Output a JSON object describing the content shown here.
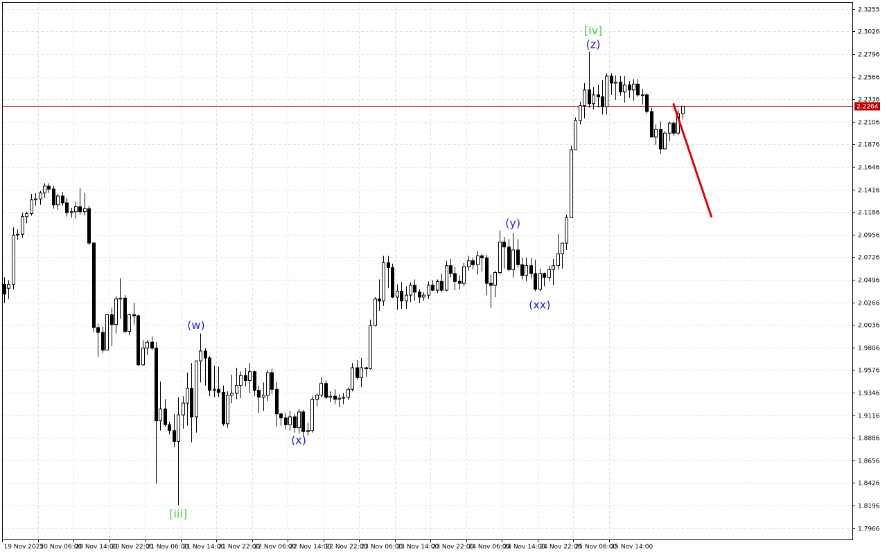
{
  "chart_data": {
    "type": "candlestick",
    "title": "",
    "xlabel": "",
    "ylabel": "",
    "ylim": [
      1.7851,
      2.3325
    ],
    "grid": true,
    "y_ticks": [
      "2.3255",
      "2.3026",
      "2.2796",
      "2.2566",
      "2.2336",
      "2.2106",
      "2.1876",
      "2.1646",
      "2.1416",
      "2.1186",
      "2.0956",
      "2.0726",
      "2.0496",
      "2.0266",
      "2.0036",
      "1.9806",
      "1.9576",
      "1.9346",
      "1.9116",
      "1.8886",
      "1.8656",
      "1.8426",
      "1.8196",
      "1.7966"
    ],
    "x_ticks": [
      "19 Nov 2025",
      "20 Nov 06:00",
      "20 Nov 14:00",
      "20 Nov 22:00",
      "21 Nov 06:00",
      "21 Nov 14:00",
      "21 Nov 22:00",
      "22 Nov 06:00",
      "22 Nov 14:00",
      "22 Nov 22:00",
      "23 Nov 06:00",
      "23 Nov 14:00",
      "23 Nov 22:00",
      "24 Nov 06:00",
      "24 Nov 14:00",
      "24 Nov 22:00",
      "25 Nov 06:00",
      "25 Nov 14:00"
    ],
    "current_price": {
      "label": "2.2264",
      "value": 2.2264,
      "color": "#c00000"
    },
    "candles": [
      [
        2.045,
        2.052,
        2.026,
        2.035
      ],
      [
        2.041,
        2.049,
        2.03,
        2.045
      ],
      [
        2.045,
        2.103,
        2.04,
        2.095
      ],
      [
        2.095,
        2.101,
        2.09,
        2.096
      ],
      [
        2.096,
        2.118,
        2.092,
        2.114
      ],
      [
        2.114,
        2.119,
        2.107,
        2.117
      ],
      [
        2.117,
        2.137,
        2.115,
        2.131
      ],
      [
        2.131,
        2.138,
        2.125,
        2.132
      ],
      [
        2.132,
        2.14,
        2.126,
        2.138
      ],
      [
        2.138,
        2.148,
        2.133,
        2.145
      ],
      [
        2.145,
        2.148,
        2.138,
        2.142
      ],
      [
        2.142,
        2.145,
        2.122,
        2.126
      ],
      [
        2.126,
        2.137,
        2.121,
        2.135
      ],
      [
        2.135,
        2.139,
        2.125,
        2.128
      ],
      [
        2.128,
        2.133,
        2.114,
        2.118
      ],
      [
        2.118,
        2.123,
        2.113,
        2.119
      ],
      [
        2.119,
        2.129,
        2.112,
        2.124
      ],
      [
        2.124,
        2.143,
        2.116,
        2.119
      ],
      [
        2.119,
        2.138,
        2.115,
        2.122
      ],
      [
        2.122,
        2.125,
        2.085,
        2.087
      ],
      [
        2.087,
        2.088,
        1.996,
        2.001
      ],
      [
        2.001,
        2.005,
        1.971,
        1.996
      ],
      [
        1.996,
        2.002,
        1.975,
        1.978
      ],
      [
        1.978,
        2.015,
        1.978,
        2.014
      ],
      [
        2.014,
        2.021,
        1.982,
        2.004
      ],
      [
        2.004,
        2.033,
        1.995,
        2.03
      ],
      [
        2.03,
        2.051,
        2.01,
        2.031
      ],
      [
        2.031,
        2.034,
        1.995,
        1.997
      ],
      [
        1.997,
        2.015,
        1.993,
        2.014
      ],
      [
        2.014,
        2.026,
        2.004,
        2.013
      ],
      [
        2.013,
        2.014,
        1.962,
        1.963
      ],
      [
        1.963,
        1.988,
        1.962,
        1.98
      ],
      [
        1.98,
        1.988,
        1.973,
        1.986
      ],
      [
        1.986,
        1.992,
        1.978,
        1.98
      ],
      [
        1.98,
        1.986,
        1.842,
        1.906
      ],
      [
        1.906,
        1.946,
        1.896,
        1.918
      ],
      [
        1.918,
        1.928,
        1.9,
        1.902
      ],
      [
        1.902,
        1.905,
        1.892,
        1.896
      ],
      [
        1.896,
        1.913,
        1.879,
        1.885
      ],
      [
        1.885,
        1.93,
        1.82,
        1.912
      ],
      [
        1.912,
        1.931,
        1.898,
        1.924
      ],
      [
        1.924,
        1.955,
        1.901,
        1.939
      ],
      [
        1.939,
        1.965,
        1.884,
        1.91
      ],
      [
        1.91,
        1.964,
        1.894,
        1.967
      ],
      [
        1.967,
        1.995,
        1.945,
        1.977
      ],
      [
        1.977,
        1.98,
        1.942,
        1.97
      ],
      [
        1.97,
        1.972,
        1.931,
        1.937
      ],
      [
        1.937,
        1.962,
        1.93,
        1.938
      ],
      [
        1.938,
        1.961,
        1.93,
        1.935
      ],
      [
        1.935,
        1.942,
        1.901,
        1.903
      ],
      [
        1.903,
        1.936,
        1.899,
        1.932
      ],
      [
        1.932,
        1.953,
        1.924,
        1.934
      ],
      [
        1.934,
        1.96,
        1.928,
        1.942
      ],
      [
        1.942,
        1.956,
        1.929,
        1.952
      ],
      [
        1.952,
        1.96,
        1.941,
        1.947
      ],
      [
        1.947,
        1.965,
        1.934,
        1.956
      ],
      [
        1.956,
        1.957,
        1.931,
        1.937
      ],
      [
        1.937,
        1.942,
        1.914,
        1.93
      ],
      [
        1.93,
        1.945,
        1.916,
        1.932
      ],
      [
        1.932,
        1.958,
        1.926,
        1.955
      ],
      [
        1.955,
        1.959,
        1.933,
        1.938
      ],
      [
        1.938,
        1.946,
        1.9,
        1.913
      ],
      [
        1.913,
        1.914,
        1.901,
        1.909
      ],
      [
        1.909,
        1.914,
        1.897,
        1.902
      ],
      [
        1.902,
        1.916,
        1.896,
        1.91
      ],
      [
        1.91,
        1.913,
        1.894,
        1.899
      ],
      [
        1.899,
        1.918,
        1.893,
        1.915
      ],
      [
        1.915,
        1.917,
        1.89,
        1.895
      ],
      [
        1.895,
        1.904,
        1.891,
        1.896
      ],
      [
        1.896,
        1.931,
        1.894,
        1.928
      ],
      [
        1.928,
        1.934,
        1.921,
        1.932
      ],
      [
        1.932,
        1.95,
        1.93,
        1.944
      ],
      [
        1.944,
        1.947,
        1.928,
        1.93
      ],
      [
        1.93,
        1.936,
        1.925,
        1.931
      ],
      [
        1.931,
        1.938,
        1.923,
        1.928
      ],
      [
        1.928,
        1.933,
        1.92,
        1.929
      ],
      [
        1.929,
        1.934,
        1.923,
        1.93
      ],
      [
        1.93,
        1.94,
        1.927,
        1.938
      ],
      [
        1.938,
        1.965,
        1.936,
        1.96
      ],
      [
        1.96,
        1.968,
        1.948,
        1.95
      ],
      [
        1.95,
        1.97,
        1.94,
        1.96
      ],
      [
        1.96,
        1.961,
        1.951,
        1.959
      ],
      [
        1.959,
        2.009,
        1.958,
        2.003
      ],
      [
        2.003,
        2.032,
        2.002,
        2.03
      ],
      [
        2.03,
        2.05,
        2.018,
        2.028
      ],
      [
        2.028,
        2.074,
        2.023,
        2.067
      ],
      [
        2.067,
        2.074,
        2.041,
        2.062
      ],
      [
        2.062,
        2.066,
        2.031,
        2.032
      ],
      [
        2.032,
        2.045,
        2.019,
        2.038
      ],
      [
        2.038,
        2.047,
        2.02,
        2.028
      ],
      [
        2.028,
        2.043,
        2.02,
        2.034
      ],
      [
        2.034,
        2.047,
        2.027,
        2.044
      ],
      [
        2.044,
        2.05,
        2.028,
        2.037
      ],
      [
        2.037,
        2.04,
        2.026,
        2.032
      ],
      [
        2.032,
        2.037,
        2.028,
        2.034
      ],
      [
        2.034,
        2.048,
        2.03,
        2.044
      ],
      [
        2.044,
        2.049,
        2.038,
        2.039
      ],
      [
        2.039,
        2.05,
        2.036,
        2.048
      ],
      [
        2.048,
        2.056,
        2.037,
        2.039
      ],
      [
        2.039,
        2.069,
        2.038,
        2.064
      ],
      [
        2.064,
        2.071,
        2.052,
        2.056
      ],
      [
        2.056,
        2.063,
        2.039,
        2.048
      ],
      [
        2.048,
        2.054,
        2.04,
        2.046
      ],
      [
        2.046,
        2.067,
        2.043,
        2.063
      ],
      [
        2.063,
        2.074,
        2.059,
        2.069
      ],
      [
        2.069,
        2.072,
        2.06,
        2.065
      ],
      [
        2.065,
        2.079,
        2.055,
        2.074
      ],
      [
        2.074,
        2.076,
        2.058,
        2.072
      ],
      [
        2.072,
        2.075,
        2.034,
        2.046
      ],
      [
        2.046,
        2.055,
        2.021,
        2.044
      ],
      [
        2.044,
        2.059,
        2.032,
        2.057
      ],
      [
        2.057,
        2.1,
        2.055,
        2.088
      ],
      [
        2.088,
        2.093,
        2.061,
        2.083
      ],
      [
        2.083,
        2.091,
        2.058,
        2.06
      ],
      [
        2.06,
        2.097,
        2.052,
        2.08
      ],
      [
        2.08,
        2.091,
        2.062,
        2.065
      ],
      [
        2.065,
        2.072,
        2.05,
        2.054
      ],
      [
        2.054,
        2.072,
        2.048,
        2.064
      ],
      [
        2.064,
        2.072,
        2.051,
        2.056
      ],
      [
        2.056,
        2.07,
        2.038,
        2.04
      ],
      [
        2.04,
        2.061,
        2.038,
        2.056
      ],
      [
        2.056,
        2.057,
        2.043,
        2.052
      ],
      [
        2.052,
        2.064,
        2.048,
        2.06
      ],
      [
        2.06,
        2.071,
        2.044,
        2.064
      ],
      [
        2.064,
        2.096,
        2.06,
        2.076
      ],
      [
        2.076,
        2.087,
        2.061,
        2.087
      ],
      [
        2.087,
        2.116,
        2.08,
        2.113
      ],
      [
        2.113,
        2.186,
        2.113,
        2.182
      ],
      [
        2.182,
        2.215,
        2.182,
        2.212
      ],
      [
        2.212,
        2.231,
        2.208,
        2.227
      ],
      [
        2.227,
        2.25,
        2.214,
        2.243
      ],
      [
        2.243,
        2.282,
        2.225,
        2.229
      ],
      [
        2.229,
        2.246,
        2.223,
        2.238
      ],
      [
        2.238,
        2.248,
        2.225,
        2.236
      ],
      [
        2.236,
        2.253,
        2.218,
        2.226
      ],
      [
        2.226,
        2.26,
        2.218,
        2.257
      ],
      [
        2.257,
        2.26,
        2.238,
        2.25
      ],
      [
        2.25,
        2.258,
        2.233,
        2.251
      ],
      [
        2.251,
        2.257,
        2.237,
        2.241
      ],
      [
        2.241,
        2.257,
        2.23,
        2.248
      ],
      [
        2.248,
        2.252,
        2.235,
        2.243
      ],
      [
        2.243,
        2.254,
        2.232,
        2.249
      ],
      [
        2.249,
        2.254,
        2.236,
        2.238
      ],
      [
        2.238,
        2.244,
        2.228,
        2.238
      ],
      [
        2.238,
        2.24,
        2.219,
        2.221
      ],
      [
        2.221,
        2.225,
        2.195,
        2.195
      ],
      [
        2.195,
        2.208,
        2.187,
        2.203
      ],
      [
        2.203,
        2.211,
        2.178,
        2.183
      ],
      [
        2.183,
        2.201,
        2.182,
        2.199
      ],
      [
        2.199,
        2.211,
        2.191,
        2.209
      ],
      [
        2.209,
        2.211,
        2.196,
        2.199
      ],
      [
        2.199,
        2.223,
        2.197,
        2.219
      ],
      [
        2.219,
        2.226,
        2.213,
        2.2264
      ]
    ],
    "forecast": {
      "color": "#e00000",
      "from": [
        150,
        2.2285
      ],
      "to": [
        158,
        2.114
      ]
    },
    "wave_labels": [
      {
        "text": "[iii]",
        "color": "#44cc44",
        "index": 39,
        "value": 1.818,
        "anchor": "below"
      },
      {
        "text": "(w)",
        "color": "#2222dd",
        "index": 43,
        "value": 1.996,
        "anchor": "above"
      },
      {
        "text": "(x)",
        "color": "#2222dd",
        "index": 66,
        "value": 1.893,
        "anchor": "below"
      },
      {
        "text": "(y)",
        "color": "#2222dd",
        "index": 114,
        "value": 2.1,
        "anchor": "above"
      },
      {
        "text": "(xx)",
        "color": "#2222dd",
        "index": 120,
        "value": 2.031,
        "anchor": "below"
      },
      {
        "text": "(z)",
        "color": "#2222dd",
        "index": 132,
        "value": 2.282,
        "anchor": "above"
      },
      {
        "text": "[iv]",
        "color": "#44cc44",
        "index": 132,
        "value": 2.296,
        "anchor": "above"
      }
    ],
    "colors": {
      "background": "#ffffff",
      "grid": "#e0e0e0",
      "axis": "#000000",
      "bull_fill": "#ffffff",
      "bear_fill": "#000000",
      "price_line": "#c00000"
    }
  }
}
